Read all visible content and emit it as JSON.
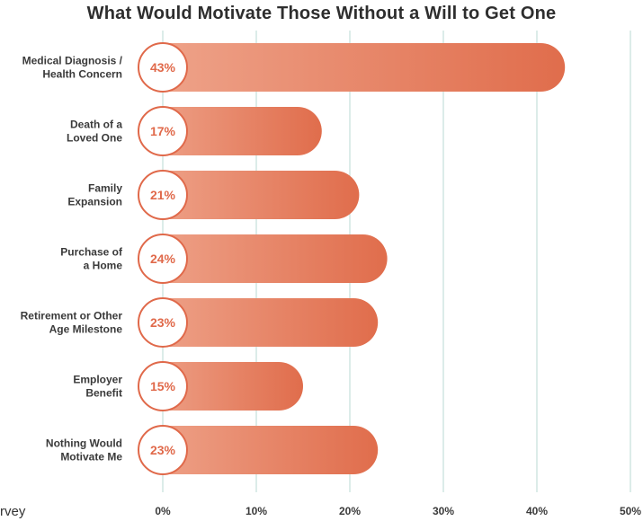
{
  "footnote": "rvey",
  "colors": {
    "bar_start": "#efa58c",
    "bar_end": "#e06d4c",
    "circle_stroke": "#e0694a",
    "grid": "#b9d9d3"
  },
  "chart_data": {
    "type": "bar",
    "orientation": "horizontal",
    "title": "What Would Motivate Those Without a Will to Get One",
    "categories": [
      [
        "Medical Diagnosis /",
        "Health Concern"
      ],
      [
        "Death of a",
        "Loved One"
      ],
      [
        "Family",
        "Expansion"
      ],
      [
        "Purchase of",
        "a Home"
      ],
      [
        "Retirement or Other",
        "Age Milestone"
      ],
      [
        "Employer",
        "Benefit"
      ],
      [
        "Nothing Would",
        "Motivate Me"
      ]
    ],
    "values": [
      43,
      17,
      21,
      24,
      23,
      15,
      23
    ],
    "data_labels": [
      "43%",
      "17%",
      "21%",
      "24%",
      "23%",
      "15%",
      "23%"
    ],
    "x_ticks": [
      0,
      10,
      20,
      30,
      40,
      50
    ],
    "x_tick_labels": [
      "0%",
      "10%",
      "20%",
      "30%",
      "40%",
      "50%"
    ],
    "xlim": [
      0,
      50
    ],
    "grid": true
  }
}
